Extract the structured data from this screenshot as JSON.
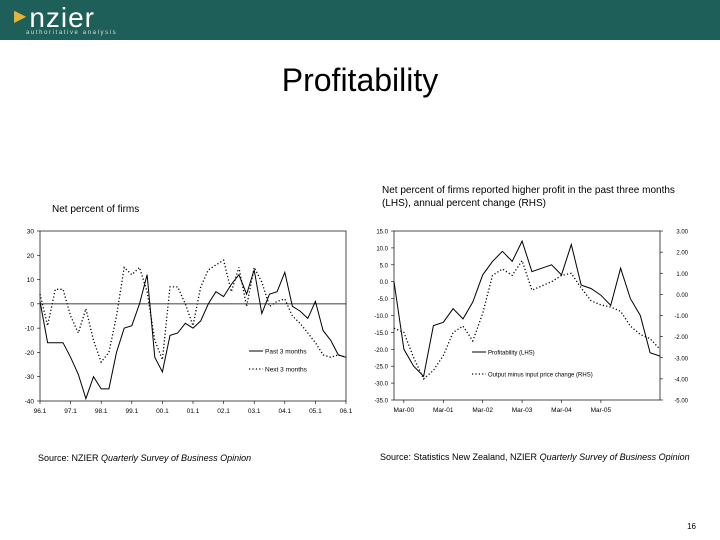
{
  "header": {
    "logo_text": "nzier",
    "tagline": "authoritative analysis",
    "brand_color": "#1f5f5a",
    "accent_color": "#e4b43a"
  },
  "page": {
    "title": "Profitability",
    "page_number": "16"
  },
  "left_panel": {
    "caption": "Net percent of firms",
    "source_prefix": "Source: NZIER ",
    "source_italic": "Quarterly Survey of Business Opinion"
  },
  "right_panel": {
    "caption": "Net percent of firms reported higher profit in the past three months (LHS), annual percent change (RHS)",
    "source_prefix": "Source: Statistics New Zealand, NZIER ",
    "source_italic": "Quarterly Survey of Business Opinion"
  },
  "chart_data": [
    {
      "type": "line",
      "ylim": [
        -40,
        30
      ],
      "yticks": [
        30,
        20,
        10,
        0,
        -10,
        -20,
        -30,
        -40
      ],
      "xticks": [
        "96.1",
        "97.1",
        "98.1",
        "99.1",
        "00.1",
        "01.1",
        "02.1",
        "03.1",
        "04.1",
        "05.1",
        "06.1"
      ],
      "x_count": 41,
      "grid": false,
      "zero_line": true,
      "legend_position": "bottom-right",
      "series": [
        {
          "name": "Past 3 months",
          "style": "solid",
          "values": [
            1,
            -16,
            -16,
            -16,
            -22,
            -29,
            -39,
            -30,
            -35,
            -35,
            -20,
            -10,
            -9,
            0,
            12,
            -22,
            -28,
            -13,
            -12,
            -8,
            -10,
            -7,
            0,
            5,
            3,
            8,
            12,
            4,
            14,
            -4,
            4,
            5,
            13,
            -1,
            -3,
            -6,
            1,
            -11,
            -15,
            -21,
            -22
          ]
        },
        {
          "name": "Next 3 months",
          "style": "dotted",
          "values": [
            4,
            -9,
            6,
            6,
            -5,
            -12,
            -2,
            -15,
            -24,
            -20,
            -5,
            15,
            12,
            15,
            5,
            -15,
            -23,
            7,
            7,
            0,
            -9,
            7,
            14,
            16,
            18,
            5,
            15,
            -1,
            15,
            9,
            -1,
            1,
            2,
            -5,
            -8,
            -12,
            -16,
            -21,
            -22,
            -21,
            -22
          ]
        }
      ]
    },
    {
      "type": "line",
      "ylim": [
        -35,
        15
      ],
      "yticks": [
        "15.0",
        "10.0",
        "5.0",
        "0.0",
        "-5.0",
        "-10.0",
        "-15.0",
        "-20.0",
        "-25.0",
        "-30.0",
        "-35.0"
      ],
      "ylim_right": [
        -5,
        3
      ],
      "yticks_right": [
        "3.00",
        "2.00",
        "1.00",
        "0.00",
        "-1.00",
        "-2.00",
        "-3.00",
        "-4.00",
        "-5.00"
      ],
      "xticks": [
        "Mar-00",
        "Mar-01",
        "Mar-02",
        "Mar-03",
        "Mar-04",
        "Mar-05"
      ],
      "x_count": 28,
      "grid": false,
      "legend_position": "bottom-center",
      "series": [
        {
          "name": "Profitability (LHS)",
          "style": "solid",
          "axis": "left",
          "values": [
            0,
            -20,
            -25,
            -28,
            -13,
            -12,
            -8,
            -11,
            -6,
            2,
            6,
            9,
            6,
            12,
            3,
            4,
            5,
            2,
            11,
            -1,
            -2,
            -4,
            -7,
            4,
            -5,
            -10,
            -21,
            -22
          ]
        },
        {
          "name": "Output minus input price change (RHS)",
          "style": "dotted",
          "axis": "right",
          "values": [
            -1.6,
            -1.8,
            -3.0,
            -4.0,
            -3.6,
            -2.9,
            -1.8,
            -1.5,
            -2.2,
            -0.9,
            0.9,
            1.2,
            0.9,
            1.6,
            0.2,
            0.4,
            0.6,
            0.9,
            1.0,
            0.3,
            -0.3,
            -0.5,
            -0.6,
            -0.8,
            -1.5,
            -1.9,
            -2.1,
            -2.6
          ]
        }
      ]
    }
  ]
}
